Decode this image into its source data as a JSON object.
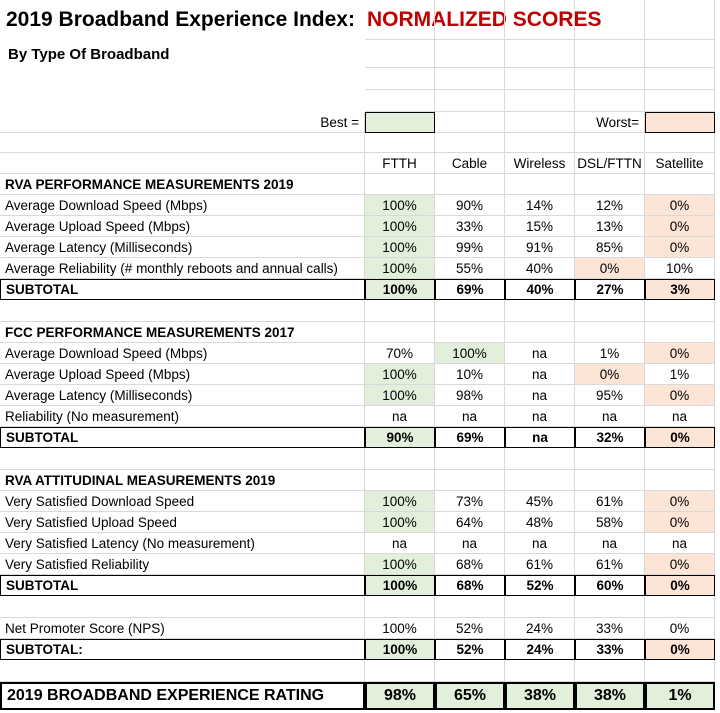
{
  "title": "2019 Broadband Experience Index:",
  "title_highlight": "NORMALIZED SCORES",
  "subtitle": "By Type Of Broadband",
  "best_label": "Best =",
  "worst_label": "Worst=",
  "best_color": "#e2efda",
  "worst_color": "#fce4d6",
  "columns": [
    "FTTH",
    "Cable",
    "Wireless",
    "DSL/FTTN",
    "Satellite"
  ],
  "sections": [
    {
      "header": "RVA PERFORMANCE MEASUREMENTS 2019",
      "rows": [
        {
          "label": "Average Download Speed (Mbps)",
          "values": [
            "100%",
            "90%",
            "14%",
            "12%",
            "0%"
          ],
          "best": [
            0
          ],
          "worst": [
            4
          ]
        },
        {
          "label": "Average Upload Speed  (Mbps)",
          "values": [
            "100%",
            "33%",
            "15%",
            "13%",
            "0%"
          ],
          "best": [
            0
          ],
          "worst": [
            4
          ]
        },
        {
          "label": "Average Latency (Milliseconds)",
          "values": [
            "100%",
            "99%",
            "91%",
            "85%",
            "0%"
          ],
          "best": [
            0
          ],
          "worst": [
            4
          ]
        },
        {
          "label": "Average Reliability (# monthly reboots and annual calls)",
          "values": [
            "100%",
            "55%",
            "40%",
            "0%",
            "10%"
          ],
          "best": [
            0
          ],
          "worst": [
            3
          ]
        }
      ],
      "subtotal": {
        "label": "SUBTOTAL",
        "values": [
          "100%",
          "69%",
          "40%",
          "27%",
          "3%"
        ],
        "best": [
          0
        ],
        "worst": [
          4
        ]
      }
    },
    {
      "header": "FCC PERFORMANCE MEASUREMENTS 2017",
      "rows": [
        {
          "label": "Average Download Speed (Mbps)",
          "values": [
            "70%",
            "100%",
            "na",
            "1%",
            "0%"
          ],
          "best": [
            1
          ],
          "worst": [
            4
          ]
        },
        {
          "label": "Average Upload Speed  (Mbps)",
          "values": [
            "100%",
            "10%",
            "na",
            "0%",
            "1%"
          ],
          "best": [
            0
          ],
          "worst": [
            3
          ]
        },
        {
          "label": "Average Latency (Milliseconds)",
          "values": [
            "100%",
            "98%",
            "na",
            "95%",
            "0%"
          ],
          "best": [
            0
          ],
          "worst": [
            4
          ]
        },
        {
          "label": "Reliability (No measurement)",
          "values": [
            "na",
            "na",
            "na",
            "na",
            "na"
          ],
          "best": [],
          "worst": []
        }
      ],
      "subtotal": {
        "label": "SUBTOTAL",
        "values": [
          "90%",
          "69%",
          "na",
          "32%",
          "0%"
        ],
        "best": [
          0
        ],
        "worst": [
          4
        ]
      }
    },
    {
      "header": "RVA ATTITUDINAL MEASUREMENTS 2019",
      "rows": [
        {
          "label": "Very Satisfied Download Speed",
          "values": [
            "100%",
            "73%",
            "45%",
            "61%",
            "0%"
          ],
          "best": [
            0
          ],
          "worst": [
            4
          ]
        },
        {
          "label": "Very Satisfied Upload Speed",
          "values": [
            "100%",
            "64%",
            "48%",
            "58%",
            "0%"
          ],
          "best": [
            0
          ],
          "worst": [
            4
          ]
        },
        {
          "label": "Very Satisfied Latency (No measurement)",
          "values": [
            "na",
            "na",
            "na",
            "na",
            "na"
          ],
          "best": [],
          "worst": []
        },
        {
          "label": "Very Satisfied Reliability",
          "values": [
            "100%",
            "68%",
            "61%",
            "61%",
            "0%"
          ],
          "best": [
            0
          ],
          "worst": [
            4
          ]
        }
      ],
      "subtotal": {
        "label": "SUBTOTAL",
        "values": [
          "100%",
          "68%",
          "52%",
          "60%",
          "0%"
        ],
        "best": [
          0
        ],
        "worst": [
          4
        ]
      }
    },
    {
      "header": null,
      "rows": [
        {
          "label": "Net Promoter Score (NPS)",
          "values": [
            "100%",
            "52%",
            "24%",
            "33%",
            "0%"
          ],
          "best": [],
          "worst": []
        }
      ],
      "subtotal": {
        "label": "SUBTOTAL:",
        "values": [
          "100%",
          "52%",
          "24%",
          "33%",
          "0%"
        ],
        "best": [
          0
        ],
        "worst": [
          4
        ]
      }
    }
  ],
  "rating": {
    "label": "2019 BROADBAND EXPERIENCE RATING",
    "values": [
      "98%",
      "65%",
      "38%",
      "38%",
      "1%"
    ],
    "best": [
      0,
      1,
      2,
      3,
      4
    ],
    "worst": []
  }
}
